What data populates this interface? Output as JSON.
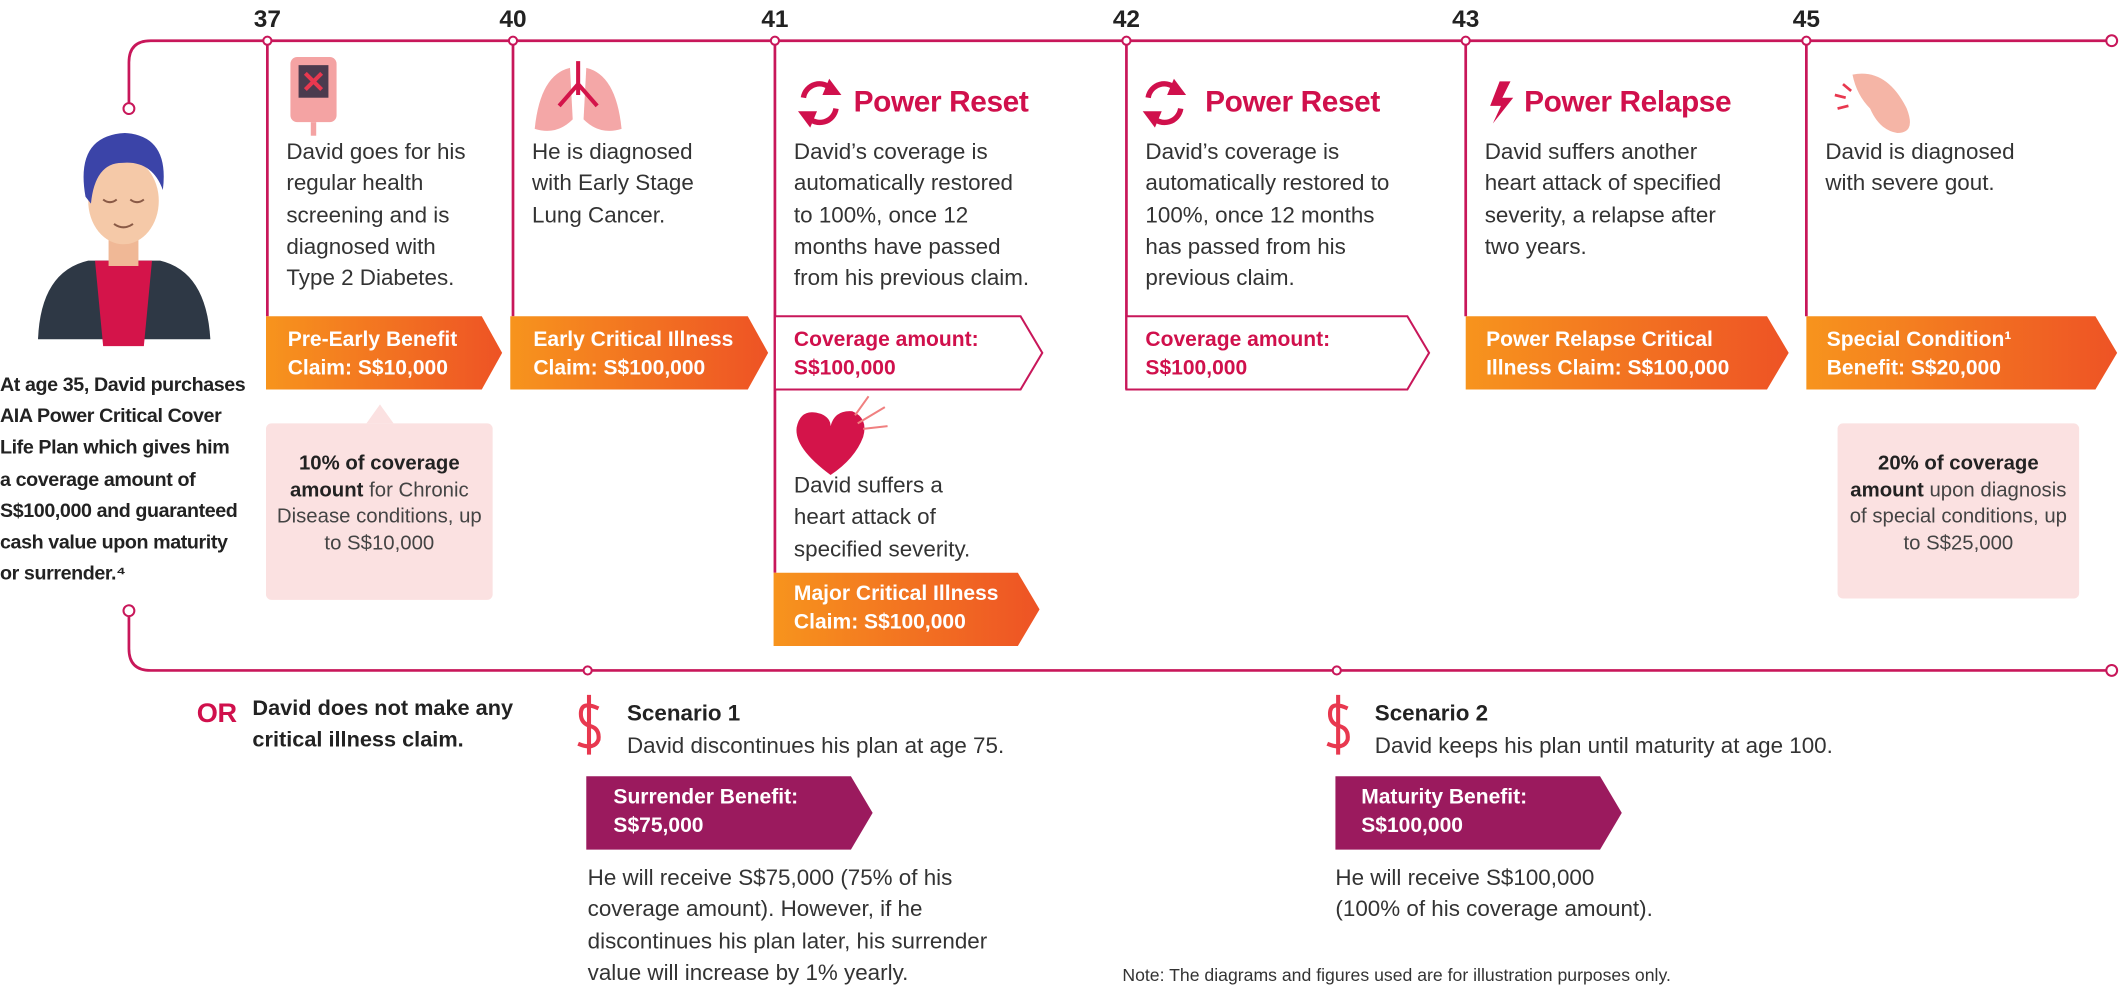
{
  "intro": [
    "At age 35, David purchases",
    "AIA Power Critical Cover",
    "Life Plan which gives him",
    "a coverage amount of",
    "S$100,000 and guaranteed",
    "cash value upon maturity",
    "or surrender.⁴"
  ],
  "events": [
    {
      "age": "37",
      "description": [
        "David goes for his",
        "regular health",
        "screening and is",
        "diagnosed with",
        "Type 2 Diabetes."
      ],
      "claim": [
        "Pre-Early Benefit",
        "Claim: S$10,000"
      ],
      "note": {
        "bold": "10% of coverage amount",
        "text": "for Chronic Disease conditions, up to S$10,000"
      }
    },
    {
      "age": "40",
      "description": [
        "He is diagnosed",
        "with Early Stage",
        "Lung Cancer."
      ],
      "claim": [
        "Early Critical Illness",
        "Claim: S$100,000"
      ]
    },
    {
      "age": "41",
      "heading": "Power Reset",
      "description": [
        "David’s coverage is",
        "automatically restored",
        "to 100%, once 12",
        "months have passed",
        "from his previous claim."
      ],
      "coverage": [
        "Coverage amount:",
        "S$100,000"
      ],
      "event2": {
        "description": [
          "David suffers a",
          "heart attack of",
          "specified severity."
        ],
        "claim": [
          "Major Critical Illness",
          "Claim: S$100,000"
        ]
      }
    },
    {
      "age": "42",
      "heading": "Power Reset",
      "description": [
        "David’s coverage is",
        "automatically restored to",
        "100%, once 12 months",
        "has passed from his",
        "previous claim."
      ],
      "coverage": [
        "Coverage amount:",
        "S$100,000"
      ]
    },
    {
      "age": "43",
      "heading": "Power Relapse",
      "description": [
        "David suffers another",
        "heart attack of specified",
        "severity, a relapse after",
        "two years."
      ],
      "claim": [
        "Power Relapse Critical",
        "Illness Claim: S$100,000"
      ]
    },
    {
      "age": "45",
      "description": [
        "David is diagnosed",
        "with severe gout."
      ],
      "claim": [
        "Special Condition¹",
        "Benefit: S$20,000"
      ],
      "note": {
        "bold": "20% of coverage amount",
        "text": "upon diagnosis of special conditions, up to S$25,000"
      }
    }
  ],
  "or": "OR",
  "no_claim": [
    "David does not make any",
    "critical illness claim."
  ],
  "scenarios": [
    {
      "title": "Scenario 1",
      "subtitle": "David discontinues his plan at age 75.",
      "benefit": [
        "Surrender Benefit:",
        "S$75,000"
      ],
      "description": [
        "He will receive S$75,000 (75% of his",
        "coverage amount). However, if he",
        "discontinues his plan later, his surrender",
        "value will increase by 1% yearly."
      ]
    },
    {
      "title": "Scenario 2",
      "subtitle": "David keeps his plan until maturity at age 100.",
      "benefit": [
        "Maturity Benefit:",
        "S$100,000"
      ],
      "description": [
        "He will receive S$100,000",
        "(100% of his coverage amount)."
      ]
    }
  ],
  "note": "Note: The diagrams and figures used are for illustration purposes only."
}
